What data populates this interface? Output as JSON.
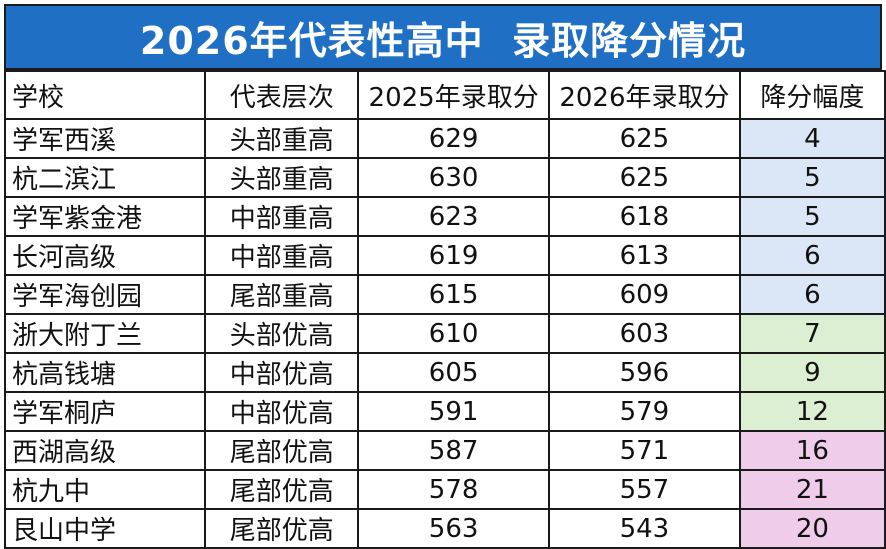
{
  "title": "2026年代表性高中  录取降分情况",
  "headers": {
    "school": "学校",
    "level": "代表层次",
    "score_2025": "2025年录取分",
    "score_2026": "2026年录取分",
    "drop": "降分幅度"
  },
  "colors": {
    "title_bg": "#1f6fc4",
    "drop_small": "#dbe7f6",
    "drop_medium": "#dcefd2",
    "drop_large": "#efcdea"
  },
  "rows": [
    {
      "school": "学军西溪",
      "level": "头部重高",
      "score_2025": "629",
      "score_2026": "625",
      "drop": "4",
      "band": "blue"
    },
    {
      "school": "杭二滨江",
      "level": "头部重高",
      "score_2025": "630",
      "score_2026": "625",
      "drop": "5",
      "band": "blue"
    },
    {
      "school": "学军紫金港",
      "level": "中部重高",
      "score_2025": "623",
      "score_2026": "618",
      "drop": "5",
      "band": "blue"
    },
    {
      "school": "长河高级",
      "level": "中部重高",
      "score_2025": "619",
      "score_2026": "613",
      "drop": "6",
      "band": "blue"
    },
    {
      "school": "学军海创园",
      "level": "尾部重高",
      "score_2025": "615",
      "score_2026": "609",
      "drop": "6",
      "band": "blue"
    },
    {
      "school": "浙大附丁兰",
      "level": "头部优高",
      "score_2025": "610",
      "score_2026": "603",
      "drop": "7",
      "band": "green"
    },
    {
      "school": "杭高钱塘",
      "level": "中部优高",
      "score_2025": "605",
      "score_2026": "596",
      "drop": "9",
      "band": "green"
    },
    {
      "school": "学军桐庐",
      "level": "中部优高",
      "score_2025": "591",
      "score_2026": "579",
      "drop": "12",
      "band": "green"
    },
    {
      "school": "西湖高级",
      "level": "尾部优高",
      "score_2025": "587",
      "score_2026": "571",
      "drop": "16",
      "band": "pink"
    },
    {
      "school": "杭九中",
      "level": "尾部优高",
      "score_2025": "578",
      "score_2026": "557",
      "drop": "21",
      "band": "pink"
    },
    {
      "school": "艮山中学",
      "level": "尾部优高",
      "score_2025": "563",
      "score_2026": "543",
      "drop": "20",
      "band": "pink"
    }
  ]
}
